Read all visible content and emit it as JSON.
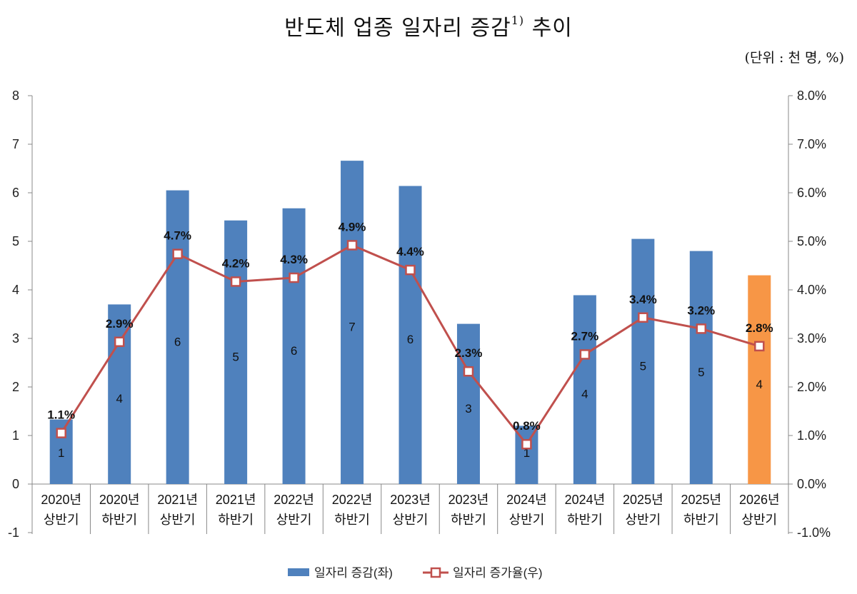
{
  "title": "반도체 업종 일자리 증감",
  "title_note": "1)",
  "title_suffix": "추이",
  "unit_label": "(단위 : 천 명, %)",
  "chart_data": {
    "type": "bar+line",
    "categories": [
      [
        "2020년",
        "상반기"
      ],
      [
        "2020년",
        "하반기"
      ],
      [
        "2021년",
        "상반기"
      ],
      [
        "2021년",
        "하반기"
      ],
      [
        "2022년",
        "상반기"
      ],
      [
        "2022년",
        "하반기"
      ],
      [
        "2023년",
        "상반기"
      ],
      [
        "2023년",
        "하반기"
      ],
      [
        "2024년",
        "상반기"
      ],
      [
        "2024년",
        "하반기"
      ],
      [
        "2025년",
        "상반기"
      ],
      [
        "2025년",
        "하반기"
      ],
      [
        "2026년",
        "상반기"
      ]
    ],
    "series": [
      {
        "name": "일자리 증감(좌)",
        "axis": "left",
        "type": "bar",
        "values": [
          1.33,
          3.7,
          6.05,
          5.43,
          5.68,
          6.66,
          6.14,
          3.3,
          1.2,
          3.89,
          5.05,
          4.8,
          4.3
        ],
        "labels": [
          "1",
          "4",
          "6",
          "5",
          "6",
          "7",
          "6",
          "3",
          "1",
          "4",
          "5",
          "5",
          "4"
        ]
      },
      {
        "name": "일자리 증가율(우)",
        "axis": "right",
        "type": "line",
        "values": [
          1.05,
          2.93,
          4.74,
          4.17,
          4.25,
          4.92,
          4.41,
          2.32,
          0.82,
          2.67,
          3.43,
          3.2,
          2.84
        ],
        "labels": [
          "1.1%",
          "2.9%",
          "4.7%",
          "4.2%",
          "4.3%",
          "4.9%",
          "4.4%",
          "2.3%",
          "0.8%",
          "2.7%",
          "3.4%",
          "3.2%",
          "2.8%"
        ]
      }
    ],
    "highlight_index": 12,
    "y_left": {
      "min": -1,
      "max": 8,
      "ticks": [
        "-1",
        "0",
        "1",
        "2",
        "3",
        "4",
        "5",
        "6",
        "7",
        "8"
      ]
    },
    "y_right": {
      "min": -1,
      "max": 8,
      "ticks": [
        "-1.0%",
        "0.0%",
        "1.0%",
        "2.0%",
        "3.0%",
        "4.0%",
        "5.0%",
        "6.0%",
        "7.0%",
        "8.0%"
      ]
    },
    "colors": {
      "bar": "#4f81bd",
      "bar_highlight": "#f79646",
      "line": "#c0504d",
      "marker_fill": "#ffffff",
      "highlight_text": "#e8180f",
      "axis": "#888888"
    },
    "legend": [
      "일자리 증감(좌)",
      "일자리 증가율(우)"
    ],
    "legend_position": "bottom-center"
  }
}
